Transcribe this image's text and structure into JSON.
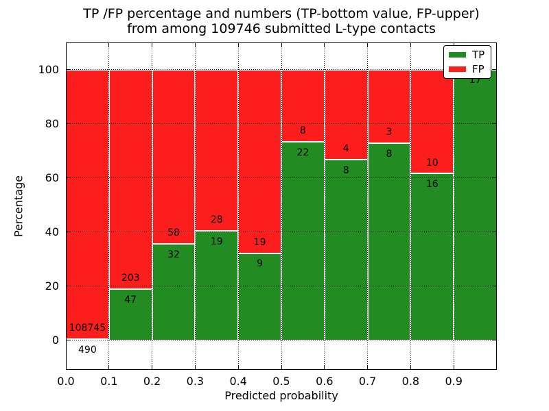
{
  "title_lines": [
    "TP /FP percentage and numbers (TP-bottom value, FP-upper)",
    "from among 109746 submitted L-type contacts"
  ],
  "chart_data": {
    "type": "bar",
    "stacked": true,
    "normalized": "each bar totals 100%",
    "title": "TP /FP percentage and numbers (TP-bottom value, FP-upper) from among 109746 submitted L-type contacts",
    "xlabel": "Predicted probability",
    "ylabel": "Percentage",
    "total_contacts": 109746,
    "bin_starts": [
      0.0,
      0.1,
      0.2,
      0.3,
      0.4,
      0.5,
      0.6,
      0.7,
      0.8,
      0.9
    ],
    "bin_width": 0.1,
    "series": [
      {
        "name": "TP",
        "color": "#228B22",
        "counts": [
          490,
          47,
          32,
          19,
          9,
          22,
          8,
          8,
          16,
          17
        ]
      },
      {
        "name": "FP",
        "color": "#FC1D1D",
        "counts": [
          108745,
          203,
          58,
          28,
          19,
          8,
          4,
          3,
          10,
          0
        ]
      }
    ],
    "tp_percent": [
      0.45,
      18.8,
      35.56,
      40.43,
      32.14,
      73.33,
      66.67,
      72.73,
      61.54,
      100.0
    ],
    "x_ticks": [
      0.0,
      0.1,
      0.2,
      0.3,
      0.4,
      0.5,
      0.6,
      0.7,
      0.8,
      0.9
    ],
    "x_tick_labels": [
      "0.0",
      "0.1",
      "0.2",
      "0.3",
      "0.4",
      "0.5",
      "0.6",
      "0.7",
      "0.8",
      "0.9"
    ],
    "y_ticks": [
      0,
      20,
      40,
      60,
      80,
      100
    ],
    "y_tick_labels": [
      "0",
      "20",
      "40",
      "60",
      "80",
      "100"
    ],
    "xlim": [
      0.0,
      1.0
    ],
    "ylim": [
      -11,
      110
    ],
    "grid": true,
    "grid_style": "dotted",
    "legend": {
      "position": "upper right",
      "entries": [
        {
          "label": "TP",
          "color": "#228B22"
        },
        {
          "label": "FP",
          "color": "#FC1D1D"
        }
      ]
    }
  },
  "colors": {
    "background": "#ffffff",
    "axis": "#000000",
    "grid": "#000000",
    "bar_edge": "#ffffff",
    "tp": "#228B22",
    "fp": "#FC1D1D"
  }
}
